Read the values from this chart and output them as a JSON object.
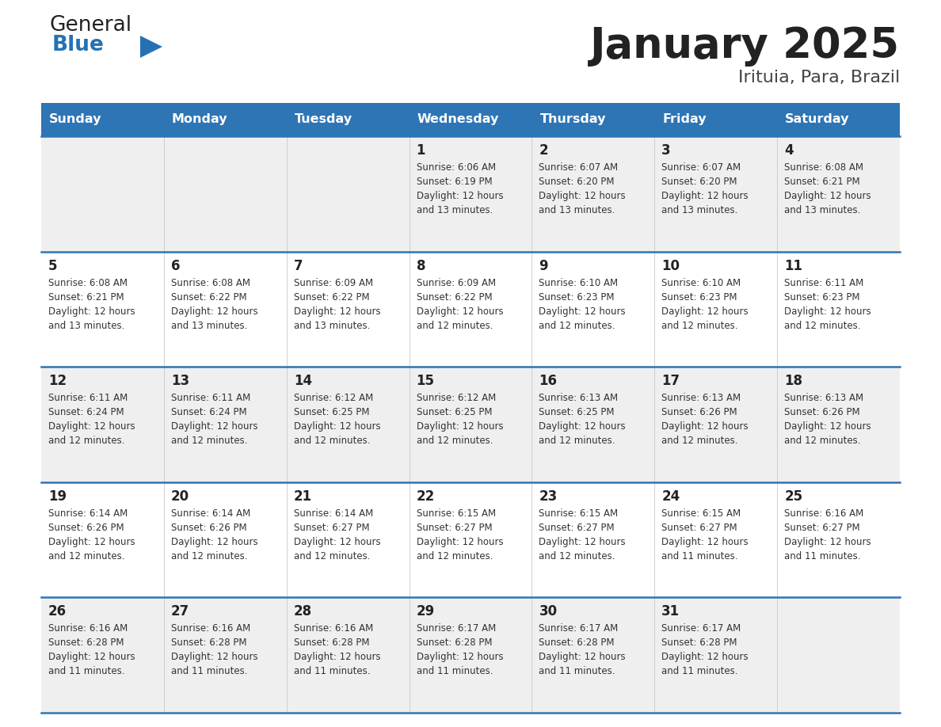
{
  "title": "January 2025",
  "subtitle": "Irituia, Para, Brazil",
  "days_of_week": [
    "Sunday",
    "Monday",
    "Tuesday",
    "Wednesday",
    "Thursday",
    "Friday",
    "Saturday"
  ],
  "header_bg": "#2E75B6",
  "header_text": "#FFFFFF",
  "row_bg_even": "#EFEFEF",
  "row_bg_odd": "#FFFFFF",
  "cell_text_color": "#333333",
  "day_num_color": "#222222",
  "title_color": "#222222",
  "subtitle_color": "#444444",
  "divider_color": "#2E75B6",
  "logo_general_color": "#222222",
  "logo_blue_color": "#2472B3",
  "calendar_data": [
    [
      {
        "day": null
      },
      {
        "day": null
      },
      {
        "day": null
      },
      {
        "day": 1,
        "sunrise": "6:06 AM",
        "sunset": "6:19 PM",
        "daylight_hours": 12,
        "daylight_mins": 13
      },
      {
        "day": 2,
        "sunrise": "6:07 AM",
        "sunset": "6:20 PM",
        "daylight_hours": 12,
        "daylight_mins": 13
      },
      {
        "day": 3,
        "sunrise": "6:07 AM",
        "sunset": "6:20 PM",
        "daylight_hours": 12,
        "daylight_mins": 13
      },
      {
        "day": 4,
        "sunrise": "6:08 AM",
        "sunset": "6:21 PM",
        "daylight_hours": 12,
        "daylight_mins": 13
      }
    ],
    [
      {
        "day": 5,
        "sunrise": "6:08 AM",
        "sunset": "6:21 PM",
        "daylight_hours": 12,
        "daylight_mins": 13
      },
      {
        "day": 6,
        "sunrise": "6:08 AM",
        "sunset": "6:22 PM",
        "daylight_hours": 12,
        "daylight_mins": 13
      },
      {
        "day": 7,
        "sunrise": "6:09 AM",
        "sunset": "6:22 PM",
        "daylight_hours": 12,
        "daylight_mins": 13
      },
      {
        "day": 8,
        "sunrise": "6:09 AM",
        "sunset": "6:22 PM",
        "daylight_hours": 12,
        "daylight_mins": 12
      },
      {
        "day": 9,
        "sunrise": "6:10 AM",
        "sunset": "6:23 PM",
        "daylight_hours": 12,
        "daylight_mins": 12
      },
      {
        "day": 10,
        "sunrise": "6:10 AM",
        "sunset": "6:23 PM",
        "daylight_hours": 12,
        "daylight_mins": 12
      },
      {
        "day": 11,
        "sunrise": "6:11 AM",
        "sunset": "6:23 PM",
        "daylight_hours": 12,
        "daylight_mins": 12
      }
    ],
    [
      {
        "day": 12,
        "sunrise": "6:11 AM",
        "sunset": "6:24 PM",
        "daylight_hours": 12,
        "daylight_mins": 12
      },
      {
        "day": 13,
        "sunrise": "6:11 AM",
        "sunset": "6:24 PM",
        "daylight_hours": 12,
        "daylight_mins": 12
      },
      {
        "day": 14,
        "sunrise": "6:12 AM",
        "sunset": "6:25 PM",
        "daylight_hours": 12,
        "daylight_mins": 12
      },
      {
        "day": 15,
        "sunrise": "6:12 AM",
        "sunset": "6:25 PM",
        "daylight_hours": 12,
        "daylight_mins": 12
      },
      {
        "day": 16,
        "sunrise": "6:13 AM",
        "sunset": "6:25 PM",
        "daylight_hours": 12,
        "daylight_mins": 12
      },
      {
        "day": 17,
        "sunrise": "6:13 AM",
        "sunset": "6:26 PM",
        "daylight_hours": 12,
        "daylight_mins": 12
      },
      {
        "day": 18,
        "sunrise": "6:13 AM",
        "sunset": "6:26 PM",
        "daylight_hours": 12,
        "daylight_mins": 12
      }
    ],
    [
      {
        "day": 19,
        "sunrise": "6:14 AM",
        "sunset": "6:26 PM",
        "daylight_hours": 12,
        "daylight_mins": 12
      },
      {
        "day": 20,
        "sunrise": "6:14 AM",
        "sunset": "6:26 PM",
        "daylight_hours": 12,
        "daylight_mins": 12
      },
      {
        "day": 21,
        "sunrise": "6:14 AM",
        "sunset": "6:27 PM",
        "daylight_hours": 12,
        "daylight_mins": 12
      },
      {
        "day": 22,
        "sunrise": "6:15 AM",
        "sunset": "6:27 PM",
        "daylight_hours": 12,
        "daylight_mins": 12
      },
      {
        "day": 23,
        "sunrise": "6:15 AM",
        "sunset": "6:27 PM",
        "daylight_hours": 12,
        "daylight_mins": 12
      },
      {
        "day": 24,
        "sunrise": "6:15 AM",
        "sunset": "6:27 PM",
        "daylight_hours": 12,
        "daylight_mins": 11
      },
      {
        "day": 25,
        "sunrise": "6:16 AM",
        "sunset": "6:27 PM",
        "daylight_hours": 12,
        "daylight_mins": 11
      }
    ],
    [
      {
        "day": 26,
        "sunrise": "6:16 AM",
        "sunset": "6:28 PM",
        "daylight_hours": 12,
        "daylight_mins": 11
      },
      {
        "day": 27,
        "sunrise": "6:16 AM",
        "sunset": "6:28 PM",
        "daylight_hours": 12,
        "daylight_mins": 11
      },
      {
        "day": 28,
        "sunrise": "6:16 AM",
        "sunset": "6:28 PM",
        "daylight_hours": 12,
        "daylight_mins": 11
      },
      {
        "day": 29,
        "sunrise": "6:17 AM",
        "sunset": "6:28 PM",
        "daylight_hours": 12,
        "daylight_mins": 11
      },
      {
        "day": 30,
        "sunrise": "6:17 AM",
        "sunset": "6:28 PM",
        "daylight_hours": 12,
        "daylight_mins": 11
      },
      {
        "day": 31,
        "sunrise": "6:17 AM",
        "sunset": "6:28 PM",
        "daylight_hours": 12,
        "daylight_mins": 11
      },
      {
        "day": null
      }
    ]
  ]
}
